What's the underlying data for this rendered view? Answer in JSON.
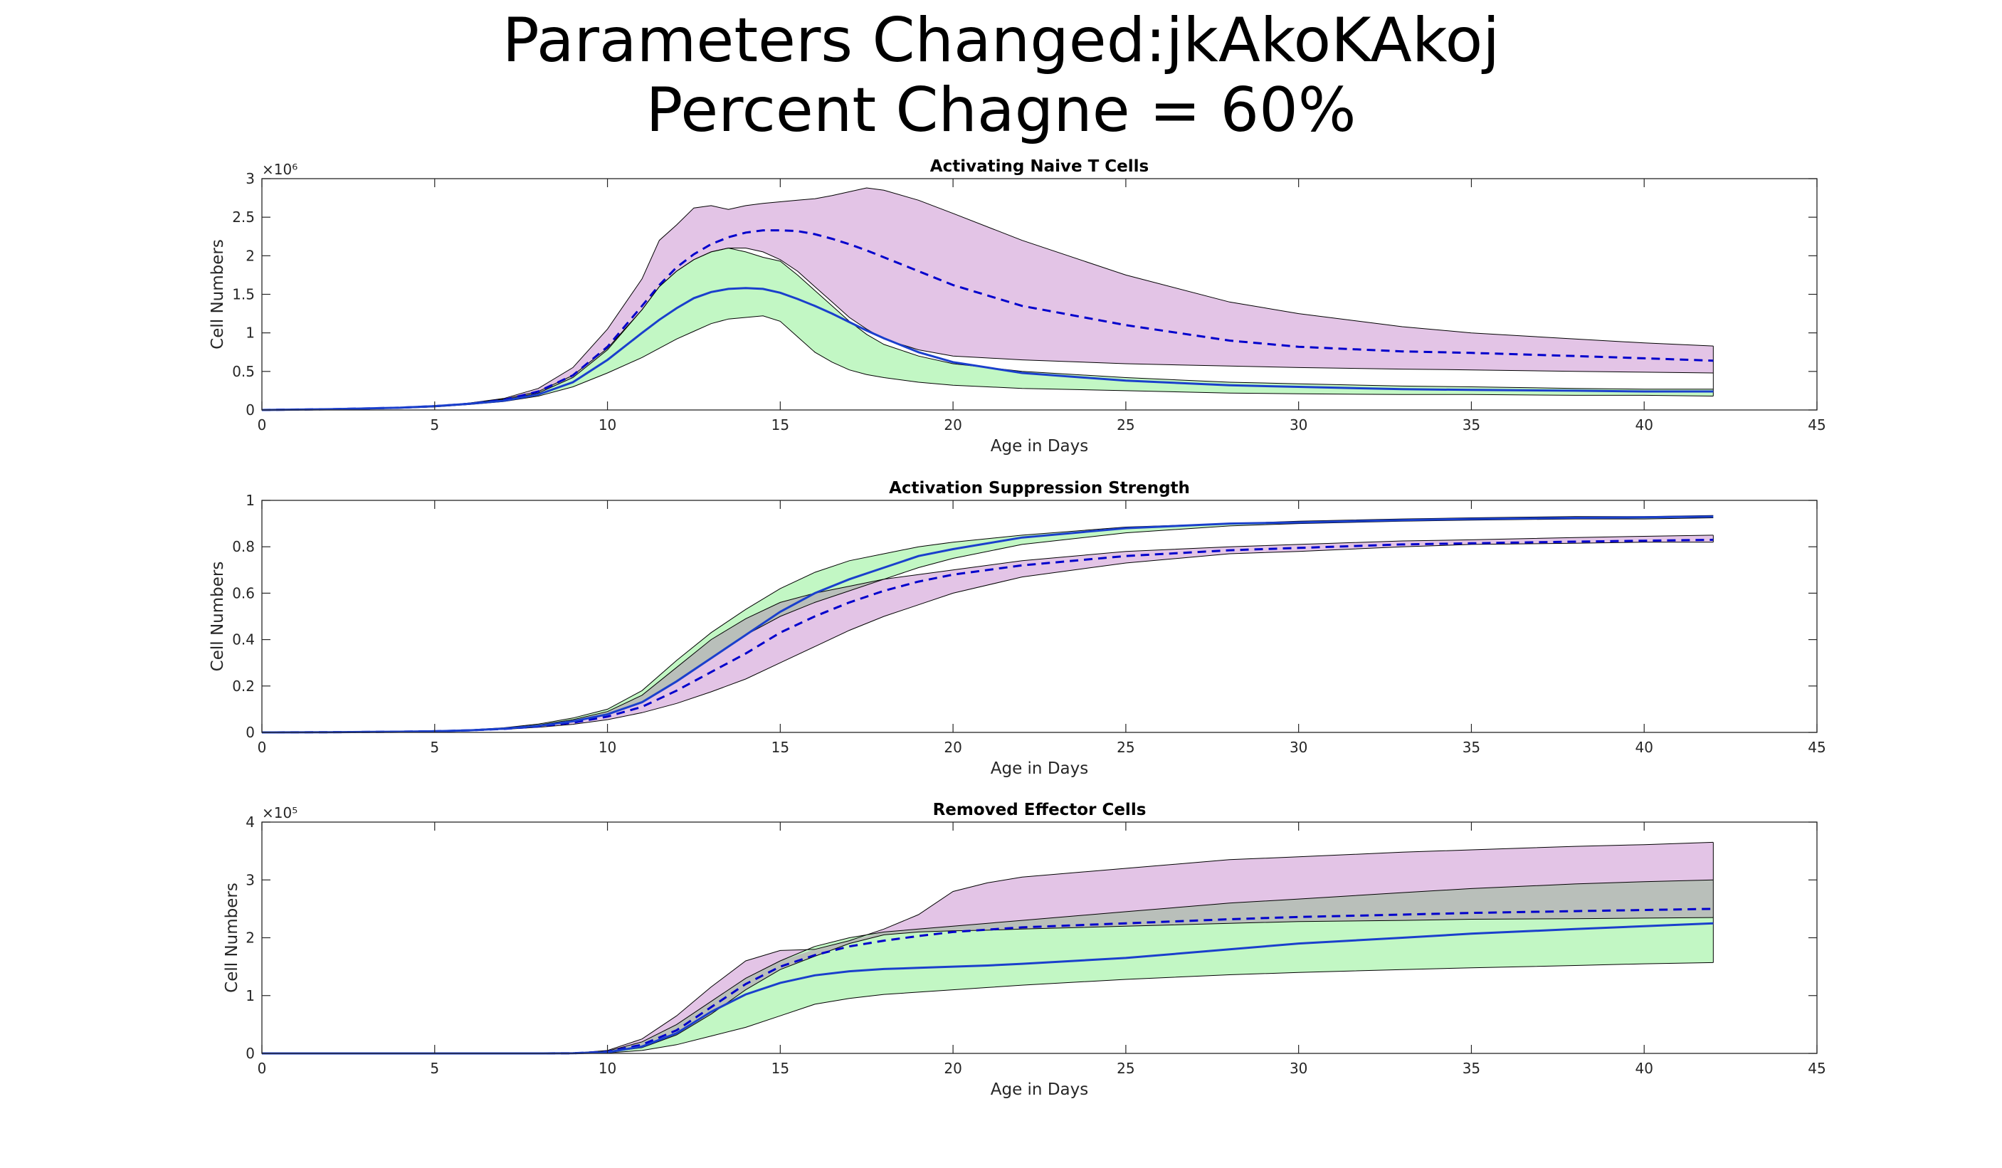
{
  "figure": {
    "title_line1": "Parameters Changed:jkAkoKAkoj",
    "title_line2": "Percent Chagne = 60%"
  },
  "colors": {
    "band_magenta": "#e3c4e6",
    "band_green": "#c2f7c4",
    "band_overlap": "#b9bfba",
    "mean_line": "#0000cc",
    "solid_line": "#1a3fcc",
    "band_edge": "#000000"
  },
  "chart_data": [
    {
      "type": "area",
      "title": "Activating Naive T Cells",
      "xlabel": "Age in Days",
      "ylabel": "Cell Numbers",
      "y_exponent_label": "×10⁶",
      "xlim": [
        0,
        45
      ],
      "ylim": [
        0,
        3
      ],
      "xticks": [
        0,
        5,
        10,
        15,
        20,
        25,
        30,
        35,
        40,
        45
      ],
      "yticks": [
        0,
        0.5,
        1,
        1.5,
        2,
        2.5,
        3
      ],
      "ytick_labels": [
        "0",
        "0.5",
        "1",
        "1.5",
        "2",
        "2.5",
        "3"
      ],
      "grid": false,
      "x": [
        0,
        2,
        4,
        5,
        6,
        7,
        8,
        9,
        10,
        11,
        11.5,
        12,
        12.5,
        13,
        13.5,
        14,
        14.5,
        15,
        15.5,
        16,
        16.5,
        17,
        17.5,
        18,
        19,
        20,
        22,
        25,
        28,
        30,
        33,
        35,
        38,
        40,
        42
      ],
      "series": [
        {
          "style": "magenta_band",
          "upper": [
            0,
            0.01,
            0.03,
            0.05,
            0.09,
            0.15,
            0.28,
            0.55,
            1.05,
            1.7,
            2.2,
            2.4,
            2.62,
            2.65,
            2.6,
            2.65,
            2.68,
            2.7,
            2.72,
            2.74,
            2.78,
            2.83,
            2.88,
            2.85,
            2.72,
            2.55,
            2.2,
            1.75,
            1.4,
            1.25,
            1.08,
            1.0,
            0.92,
            0.87,
            0.83
          ],
          "lower": [
            0,
            0.01,
            0.03,
            0.05,
            0.08,
            0.13,
            0.22,
            0.42,
            0.78,
            1.3,
            1.6,
            1.8,
            1.95,
            2.05,
            2.1,
            2.1,
            2.05,
            1.95,
            1.8,
            1.6,
            1.4,
            1.2,
            1.05,
            0.92,
            0.78,
            0.7,
            0.65,
            0.6,
            0.57,
            0.55,
            0.53,
            0.52,
            0.5,
            0.49,
            0.48
          ]
        },
        {
          "style": "green_band",
          "upper": [
            0,
            0.01,
            0.03,
            0.05,
            0.09,
            0.14,
            0.24,
            0.45,
            0.8,
            1.3,
            1.6,
            1.8,
            1.95,
            2.05,
            2.1,
            2.05,
            1.98,
            1.93,
            1.75,
            1.55,
            1.35,
            1.15,
            0.98,
            0.85,
            0.7,
            0.6,
            0.5,
            0.42,
            0.36,
            0.34,
            0.31,
            0.3,
            0.28,
            0.27,
            0.27
          ],
          "lower": [
            0,
            0.01,
            0.02,
            0.04,
            0.07,
            0.11,
            0.18,
            0.3,
            0.48,
            0.68,
            0.8,
            0.92,
            1.02,
            1.12,
            1.18,
            1.2,
            1.22,
            1.15,
            0.95,
            0.75,
            0.62,
            0.52,
            0.46,
            0.42,
            0.36,
            0.32,
            0.28,
            0.25,
            0.22,
            0.21,
            0.2,
            0.2,
            0.19,
            0.19,
            0.18
          ]
        },
        {
          "style": "dashed",
          "values": [
            0,
            0.01,
            0.03,
            0.05,
            0.08,
            0.13,
            0.24,
            0.45,
            0.82,
            1.35,
            1.62,
            1.85,
            2.02,
            2.15,
            2.24,
            2.3,
            2.33,
            2.33,
            2.32,
            2.28,
            2.22,
            2.15,
            2.07,
            1.98,
            1.8,
            1.62,
            1.35,
            1.1,
            0.9,
            0.82,
            0.76,
            0.74,
            0.7,
            0.67,
            0.64
          ]
        },
        {
          "style": "solid",
          "values": [
            0,
            0.01,
            0.03,
            0.05,
            0.08,
            0.12,
            0.2,
            0.36,
            0.65,
            1.0,
            1.17,
            1.32,
            1.45,
            1.53,
            1.57,
            1.58,
            1.57,
            1.52,
            1.44,
            1.35,
            1.25,
            1.14,
            1.03,
            0.93,
            0.75,
            0.62,
            0.48,
            0.38,
            0.32,
            0.3,
            0.27,
            0.26,
            0.25,
            0.24,
            0.24
          ]
        }
      ]
    },
    {
      "type": "area",
      "title": "Activation Suppression Strength",
      "xlabel": "Age in Days",
      "ylabel": "Cell Numbers",
      "y_exponent_label": "",
      "xlim": [
        0,
        45
      ],
      "ylim": [
        0,
        1
      ],
      "xticks": [
        0,
        5,
        10,
        15,
        20,
        25,
        30,
        35,
        40,
        45
      ],
      "yticks": [
        0,
        0.2,
        0.4,
        0.6,
        0.8,
        1
      ],
      "ytick_labels": [
        "0",
        "0.2",
        "0.4",
        "0.6",
        "0.8",
        "1"
      ],
      "grid": false,
      "x": [
        0,
        2,
        4,
        5,
        6,
        7,
        8,
        9,
        10,
        11,
        12,
        13,
        14,
        15,
        16,
        17,
        18,
        19,
        20,
        22,
        25,
        28,
        30,
        33,
        35,
        38,
        40,
        42
      ],
      "series": [
        {
          "style": "magenta_band",
          "upper": [
            0,
            0.001,
            0.003,
            0.005,
            0.01,
            0.018,
            0.032,
            0.055,
            0.09,
            0.16,
            0.28,
            0.4,
            0.49,
            0.56,
            0.6,
            0.63,
            0.66,
            0.68,
            0.7,
            0.74,
            0.78,
            0.8,
            0.81,
            0.825,
            0.83,
            0.84,
            0.845,
            0.85
          ],
          "lower": [
            0,
            0.001,
            0.002,
            0.004,
            0.008,
            0.013,
            0.022,
            0.035,
            0.055,
            0.085,
            0.125,
            0.175,
            0.23,
            0.3,
            0.37,
            0.44,
            0.5,
            0.55,
            0.6,
            0.67,
            0.73,
            0.77,
            0.78,
            0.8,
            0.81,
            0.815,
            0.82,
            0.82
          ]
        },
        {
          "style": "green_band",
          "upper": [
            0,
            0.001,
            0.003,
            0.006,
            0.011,
            0.02,
            0.036,
            0.062,
            0.1,
            0.18,
            0.31,
            0.43,
            0.53,
            0.62,
            0.69,
            0.74,
            0.77,
            0.8,
            0.82,
            0.85,
            0.885,
            0.9,
            0.91,
            0.92,
            0.925,
            0.93,
            0.93,
            0.935
          ],
          "lower": [
            0,
            0.001,
            0.003,
            0.005,
            0.009,
            0.016,
            0.028,
            0.047,
            0.075,
            0.13,
            0.22,
            0.32,
            0.42,
            0.5,
            0.56,
            0.61,
            0.66,
            0.71,
            0.75,
            0.81,
            0.86,
            0.89,
            0.9,
            0.91,
            0.915,
            0.92,
            0.92,
            0.925
          ]
        },
        {
          "style": "dashed",
          "values": [
            0,
            0.001,
            0.003,
            0.005,
            0.009,
            0.015,
            0.026,
            0.042,
            0.068,
            0.11,
            0.18,
            0.26,
            0.34,
            0.43,
            0.5,
            0.56,
            0.61,
            0.65,
            0.68,
            0.72,
            0.76,
            0.785,
            0.795,
            0.81,
            0.815,
            0.822,
            0.826,
            0.83
          ]
        },
        {
          "style": "solid",
          "values": [
            0,
            0.001,
            0.003,
            0.005,
            0.009,
            0.016,
            0.028,
            0.048,
            0.078,
            0.13,
            0.22,
            0.32,
            0.42,
            0.52,
            0.6,
            0.66,
            0.71,
            0.76,
            0.79,
            0.84,
            0.88,
            0.9,
            0.905,
            0.915,
            0.92,
            0.925,
            0.927,
            0.93
          ]
        }
      ]
    },
    {
      "type": "area",
      "title": "Removed Effector Cells",
      "xlabel": "Age in Days",
      "ylabel": "Cell Numbers",
      "y_exponent_label": "×10⁵",
      "xlim": [
        0,
        45
      ],
      "ylim": [
        0,
        4
      ],
      "xticks": [
        0,
        5,
        10,
        15,
        20,
        25,
        30,
        35,
        40,
        45
      ],
      "yticks": [
        0,
        1,
        2,
        3,
        4
      ],
      "ytick_labels": [
        "0",
        "1",
        "2",
        "3",
        "4"
      ],
      "grid": false,
      "x": [
        0,
        5,
        8,
        9,
        10,
        11,
        12,
        13,
        14,
        15,
        16,
        17,
        18,
        19,
        20,
        21,
        22,
        25,
        28,
        30,
        33,
        35,
        38,
        40,
        42
      ],
      "series": [
        {
          "style": "magenta_band",
          "upper": [
            0,
            0,
            0,
            0.005,
            0.05,
            0.25,
            0.65,
            1.15,
            1.6,
            1.78,
            1.8,
            1.95,
            2.15,
            2.4,
            2.8,
            2.95,
            3.05,
            3.2,
            3.35,
            3.4,
            3.48,
            3.52,
            3.58,
            3.61,
            3.65
          ],
          "lower": [
            0,
            0,
            0,
            0.002,
            0.02,
            0.1,
            0.32,
            0.68,
            1.1,
            1.45,
            1.68,
            1.9,
            2.05,
            2.1,
            2.12,
            2.13,
            2.15,
            2.2,
            2.25,
            2.28,
            2.3,
            2.32,
            2.33,
            2.34,
            2.35
          ]
        },
        {
          "style": "green_band",
          "upper": [
            0,
            0,
            0,
            0.004,
            0.04,
            0.2,
            0.5,
            0.9,
            1.3,
            1.6,
            1.85,
            2.0,
            2.1,
            2.15,
            2.2,
            2.25,
            2.3,
            2.45,
            2.6,
            2.67,
            2.78,
            2.85,
            2.93,
            2.97,
            3.0
          ],
          "lower": [
            0,
            0,
            0,
            0.001,
            0.01,
            0.05,
            0.15,
            0.3,
            0.45,
            0.65,
            0.85,
            0.95,
            1.02,
            1.06,
            1.1,
            1.14,
            1.18,
            1.28,
            1.36,
            1.4,
            1.45,
            1.48,
            1.52,
            1.55,
            1.57
          ]
        },
        {
          "style": "dashed",
          "values": [
            0,
            0,
            0,
            0.003,
            0.03,
            0.15,
            0.4,
            0.8,
            1.2,
            1.5,
            1.7,
            1.85,
            1.95,
            2.03,
            2.1,
            2.14,
            2.18,
            2.25,
            2.32,
            2.36,
            2.4,
            2.43,
            2.46,
            2.48,
            2.5
          ]
        },
        {
          "style": "solid",
          "values": [
            0,
            0,
            0,
            0.002,
            0.02,
            0.12,
            0.35,
            0.72,
            1.02,
            1.22,
            1.35,
            1.42,
            1.46,
            1.48,
            1.5,
            1.52,
            1.55,
            1.65,
            1.8,
            1.9,
            2.0,
            2.07,
            2.15,
            2.2,
            2.25
          ]
        }
      ]
    }
  ]
}
